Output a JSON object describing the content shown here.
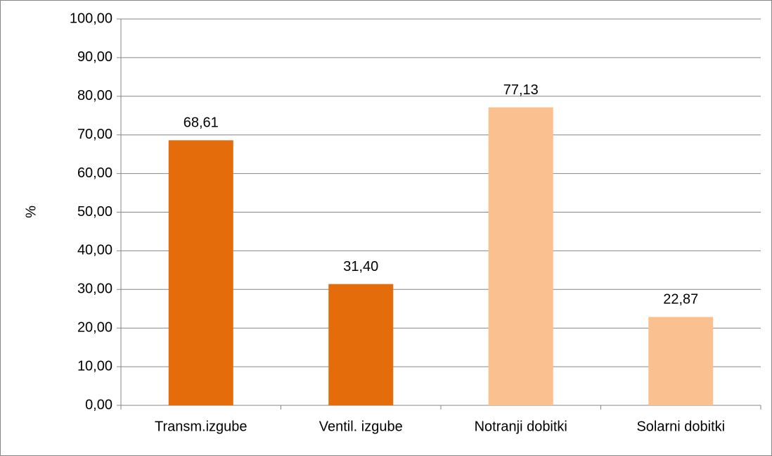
{
  "chart_data": {
    "type": "bar",
    "y_label": "%",
    "categories": [
      "Transm.izgube",
      "Ventil. izgube",
      "Notranji dobitki",
      "Solarni dobitki"
    ],
    "values": [
      68.61,
      31.4,
      77.13,
      22.87
    ],
    "value_labels": [
      "68,61",
      "31,40",
      "77,13",
      "22,87"
    ],
    "colors": [
      "#e46c0a",
      "#e46c0a",
      "#fac090",
      "#fac090"
    ],
    "ylim": [
      0,
      100
    ],
    "yticks": [
      {
        "value": 0,
        "label": "0,00"
      },
      {
        "value": 10,
        "label": "10,00"
      },
      {
        "value": 20,
        "label": "20,00"
      },
      {
        "value": 30,
        "label": "30,00"
      },
      {
        "value": 40,
        "label": "40,00"
      },
      {
        "value": 50,
        "label": "50,00"
      },
      {
        "value": 60,
        "label": "60,00"
      },
      {
        "value": 70,
        "label": "70,00"
      },
      {
        "value": 80,
        "label": "80,00"
      },
      {
        "value": 90,
        "label": "90,00"
      },
      {
        "value": 100,
        "label": "100,00"
      }
    ],
    "grid": true
  }
}
